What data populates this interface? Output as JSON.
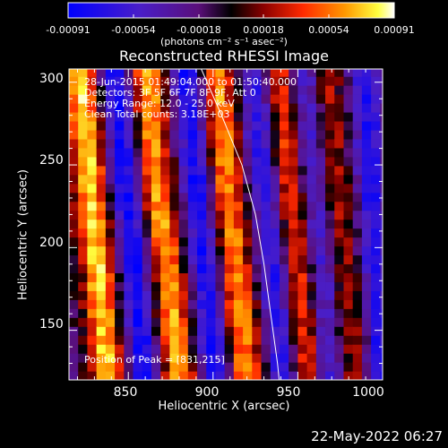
{
  "colorbar": {
    "ticks": [
      "-0.00091",
      "-0.00054",
      "-0.00018",
      "0.00018",
      "0.00054",
      "0.00091"
    ],
    "unit_label": "(photons cm⁻² s⁻¹ asec⁻²)"
  },
  "annotations": {
    "time_range": "28-Jun-2015 01:49:04.000 to 01:50:40.000",
    "detectors": "Detectors: 3F 5F 6F 7F 8F 9F, Att 0",
    "energy": "Energy Range: 12.0 - 25.0 keV",
    "method": "Clean    Total counts: 3.18E+03",
    "peak": "Position of Peak = [831,215]"
  },
  "footer": {
    "date": "22-May-2022 06:27"
  },
  "chart_data": {
    "type": "heatmap",
    "title": "Reconstructed RHESSI Image",
    "xlabel": "Heliocentric X (arcsec)",
    "ylabel": "Heliocentric Y (arcsec)",
    "xlim": [
      815,
      1000
    ],
    "ylim": [
      120,
      308
    ],
    "x_ticks": [
      850,
      900,
      950,
      1000
    ],
    "y_ticks": [
      150,
      200,
      250,
      300
    ],
    "colorbar_range": [
      -0.00091,
      0.00091
    ],
    "peak_position": [
      831,
      215
    ],
    "limb_curve": [
      [
        893,
        308
      ],
      [
        905,
        280
      ],
      [
        917,
        250
      ],
      [
        925,
        220
      ],
      [
        930,
        190
      ],
      [
        934,
        160
      ],
      [
        938,
        130
      ],
      [
        939,
        120
      ]
    ],
    "features": [
      {
        "kind": "bright-stripe",
        "path": [
          [
            822,
            300
          ],
          [
            826,
            260
          ],
          [
            829,
            215
          ],
          [
            833,
            180
          ],
          [
            836,
            140
          ]
        ],
        "value": 0.0009
      },
      {
        "kind": "bright-stripe",
        "path": [
          [
            862,
            300
          ],
          [
            864,
            265
          ],
          [
            868,
            225
          ],
          [
            873,
            190
          ],
          [
            877,
            150
          ]
        ],
        "value": 0.0008
      },
      {
        "kind": "bright-stripe",
        "path": [
          [
            903,
            300
          ],
          [
            906,
            260
          ],
          [
            910,
            220
          ],
          [
            914,
            180
          ],
          [
            918,
            140
          ]
        ],
        "value": 0.00075
      },
      {
        "kind": "bright-stripe",
        "path": [
          [
            938,
            305
          ],
          [
            942,
            270
          ],
          [
            946,
            230
          ],
          [
            950,
            190
          ],
          [
            954,
            140
          ]
        ],
        "value": 0.00055
      },
      {
        "kind": "bright-stripe",
        "path": [
          [
            966,
            305
          ],
          [
            969,
            270
          ],
          [
            973,
            230
          ],
          [
            977,
            190
          ],
          [
            981,
            150
          ]
        ],
        "value": 0.0004
      },
      {
        "kind": "dark-stripe",
        "path": [
          [
            842,
            305
          ],
          [
            846,
            265
          ],
          [
            850,
            225
          ],
          [
            854,
            185
          ],
          [
            858,
            140
          ]
        ],
        "value": -0.0007
      },
      {
        "kind": "dark-stripe",
        "path": [
          [
            884,
            305
          ],
          [
            888,
            265
          ],
          [
            892,
            225
          ],
          [
            896,
            185
          ],
          [
            900,
            140
          ]
        ],
        "value": -0.0007
      },
      {
        "kind": "dark-stripe",
        "path": [
          [
            925,
            305
          ],
          [
            928,
            265
          ],
          [
            932,
            225
          ],
          [
            936,
            185
          ],
          [
            940,
            140
          ]
        ],
        "value": -0.0006
      },
      {
        "kind": "dark-stripe",
        "path": [
          [
            955,
            300
          ],
          [
            958,
            260
          ],
          [
            962,
            220
          ],
          [
            965,
            180
          ],
          [
            968,
            140
          ]
        ],
        "value": -0.0005
      },
      {
        "kind": "dark-stripe",
        "path": [
          [
            990,
            305
          ],
          [
            992,
            265
          ],
          [
            994,
            225
          ],
          [
            996,
            185
          ],
          [
            998,
            140
          ]
        ],
        "value": -0.0006
      }
    ]
  }
}
